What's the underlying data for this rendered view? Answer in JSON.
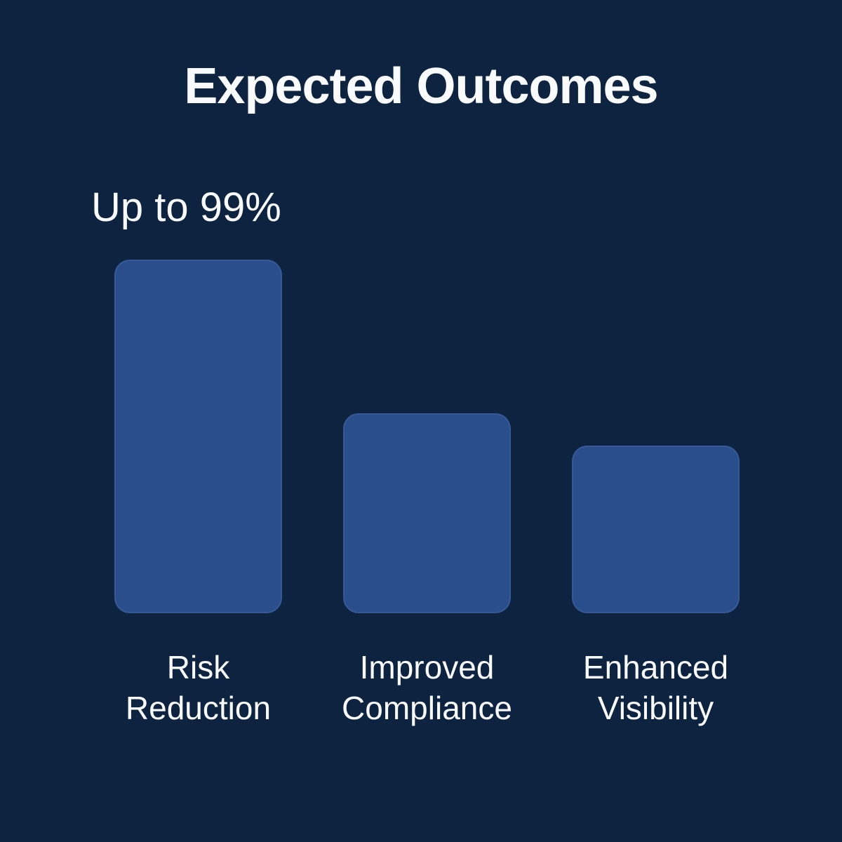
{
  "title": "Expected Outcomes",
  "colors": {
    "background": "#0D2340",
    "bar": "#2A4D8C",
    "text": "#F8FAFC"
  },
  "chart_data": {
    "type": "bar",
    "title": "Expected Outcomes",
    "categories": [
      "Risk Reduction",
      "Improved Compliance",
      "Enhanced Visibility"
    ],
    "values": [
      99,
      56,
      47
    ],
    "value_unit": "%",
    "annotation": "Up to 99%",
    "annotation_target": "Risk Reduction",
    "xlabel": "",
    "ylabel": "",
    "ylim": [
      0,
      99
    ],
    "grid": false,
    "legend": false,
    "axes_visible": false,
    "bar_color": "#2A4D8C",
    "background_color": "#0D2340"
  }
}
